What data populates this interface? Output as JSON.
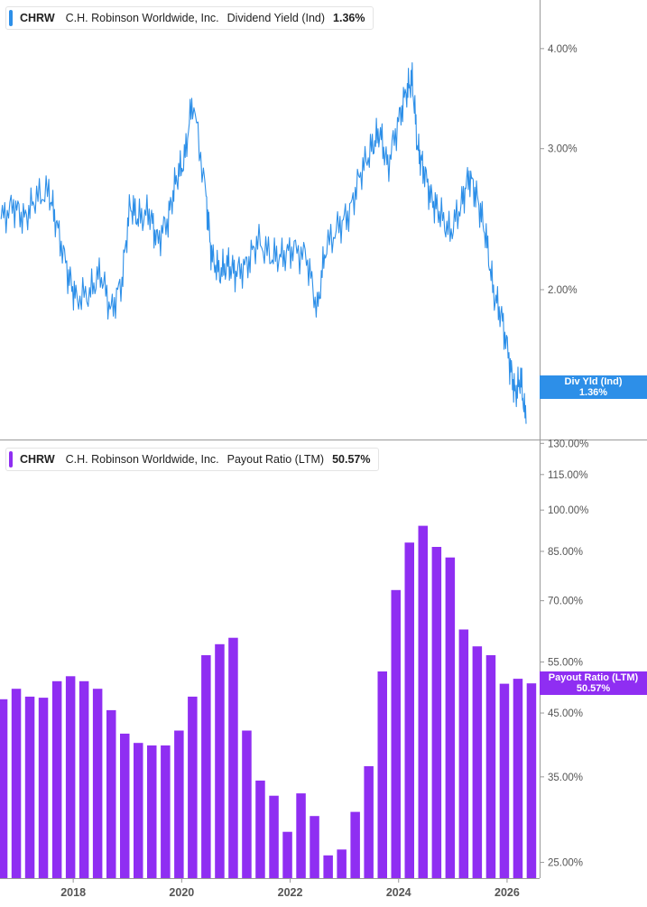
{
  "colors": {
    "yield": "#2d8fe8",
    "payout": "#8f2ef2",
    "axis": "#999999",
    "tick_text": "#555555"
  },
  "top_panel": {
    "legend": {
      "ticker": "CHRW",
      "company": "C.H. Robinson Worldwide, Inc.",
      "metric": "Dividend Yield (Ind)",
      "value": "1.36%"
    },
    "tag": {
      "label": "Div Yld (Ind)",
      "value": "1.36%"
    }
  },
  "bottom_panel": {
    "legend": {
      "ticker": "CHRW",
      "company": "C.H. Robinson Worldwide, Inc.",
      "metric": "Payout Ratio (LTM)",
      "value": "50.57%"
    },
    "tag": {
      "label": "Payout Ratio (LTM)",
      "value": "50.57%"
    }
  },
  "chart_data": [
    {
      "type": "line",
      "title": "Dividend Yield (Ind)",
      "series": [
        {
          "name": "Dividend Yield (Ind)"
        }
      ],
      "scale": "log",
      "y_ticks": [
        {
          "value": 4.0,
          "label": "4.00%"
        },
        {
          "value": 3.0,
          "label": "3.00%"
        },
        {
          "value": 2.0,
          "label": "2.00%"
        }
      ],
      "ylim": [
        1.3,
        4.6
      ],
      "xlim": [
        2016.65,
        2026.6
      ],
      "x": [
        2016.67,
        2016.9,
        2017.1,
        2017.3,
        2017.55,
        2017.7,
        2017.9,
        2018.05,
        2018.3,
        2018.5,
        2018.7,
        2018.9,
        2019.05,
        2019.2,
        2019.4,
        2019.55,
        2019.75,
        2019.9,
        2020.05,
        2020.2,
        2020.45,
        2020.55,
        2020.7,
        2020.85,
        2021.0,
        2021.2,
        2021.4,
        2021.65,
        2021.85,
        2022.05,
        2022.3,
        2022.5,
        2022.65,
        2022.9,
        2023.1,
        2023.3,
        2023.5,
        2023.65,
        2023.8,
        2024.0,
        2024.15,
        2024.25,
        2024.35,
        2024.45,
        2024.6,
        2024.75,
        2024.95,
        2025.15,
        2025.3,
        2025.45,
        2025.6,
        2025.75,
        2025.9,
        2026.05,
        2026.15,
        2026.25,
        2026.35
      ],
      "y": [
        2.45,
        2.55,
        2.45,
        2.6,
        2.65,
        2.4,
        2.1,
        1.95,
        1.98,
        2.1,
        1.88,
        2.05,
        2.55,
        2.45,
        2.5,
        2.3,
        2.45,
        2.75,
        2.9,
        3.45,
        2.6,
        2.2,
        2.1,
        2.15,
        2.1,
        2.15,
        2.3,
        2.2,
        2.2,
        2.25,
        2.2,
        1.88,
        2.25,
        2.4,
        2.5,
        2.8,
        3.0,
        3.15,
        2.85,
        3.25,
        3.55,
        3.65,
        3.0,
        2.85,
        2.6,
        2.5,
        2.35,
        2.55,
        2.78,
        2.6,
        2.35,
        1.98,
        1.85,
        1.62,
        1.48,
        1.55,
        1.36
      ]
    },
    {
      "type": "bar",
      "title": "Payout Ratio (LTM)",
      "series": [
        {
          "name": "Payout Ratio (LTM)"
        }
      ],
      "scale": "log",
      "y_ticks": [
        {
          "value": 130,
          "label": "130.00%"
        },
        {
          "value": 115,
          "label": "115.00%"
        },
        {
          "value": 100,
          "label": "100.00%"
        },
        {
          "value": 85,
          "label": "85.00%"
        },
        {
          "value": 70,
          "label": "70.00%"
        },
        {
          "value": 55,
          "label": "55.00%"
        },
        {
          "value": 45,
          "label": "45.00%"
        },
        {
          "value": 35,
          "label": "35.00%"
        },
        {
          "value": 25,
          "label": "25.00%"
        }
      ],
      "ylim": [
        23.5,
        132
      ],
      "xlim": [
        2016.65,
        2026.6
      ],
      "x_ticks": [
        2018,
        2020,
        2022,
        2024,
        2026
      ],
      "x_tick_labels": [
        "2018",
        "2020",
        "2022",
        "2024",
        "2026"
      ],
      "x": [
        2016.7,
        2016.95,
        2017.2,
        2017.45,
        2017.7,
        2017.95,
        2018.2,
        2018.45,
        2018.7,
        2018.95,
        2019.2,
        2019.45,
        2019.7,
        2019.95,
        2020.2,
        2020.45,
        2020.7,
        2020.95,
        2021.2,
        2021.45,
        2021.7,
        2021.95,
        2022.2,
        2022.45,
        2022.7,
        2022.95,
        2023.2,
        2023.45,
        2023.7,
        2023.95,
        2024.2,
        2024.45,
        2024.7,
        2024.95,
        2025.2,
        2025.45,
        2025.7,
        2025.95,
        2026.2,
        2026.45
      ],
      "values": [
        47.5,
        49.5,
        48,
        47.8,
        51,
        52,
        51,
        49.5,
        45.5,
        41.5,
        40,
        39.6,
        39.6,
        42,
        48,
        56.5,
        59,
        60.5,
        42,
        34.5,
        32.5,
        28.2,
        32.8,
        30,
        25.7,
        26.3,
        30.5,
        36.5,
        53,
        73,
        88,
        94,
        86.5,
        83,
        62.5,
        58.5,
        56.5,
        50.5,
        51.5,
        50.57
      ]
    }
  ]
}
